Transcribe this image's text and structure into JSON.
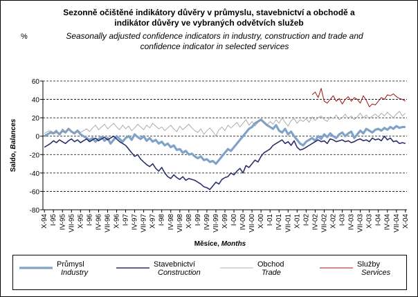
{
  "chart_data": {
    "type": "line",
    "title": [
      "Sezonně očištěné indikátory důvěry v průmyslu, stavebnictví a obchodě a",
      "indikátor důvěry ve vybraných odvětvích služeb"
    ],
    "subtitle": [
      "Seasonally adjusted confidence indicators in industry, construction and trade and",
      "confidence indicator in selected services"
    ],
    "unit": "%",
    "ylabel": [
      "Saldo, ",
      "Balances"
    ],
    "xlabel": [
      "Měsíce, ",
      "Months"
    ],
    "categories": [
      "X-94",
      null,
      null,
      "I-95",
      null,
      null,
      "IV-95",
      null,
      null,
      "VII-95",
      null,
      null,
      "X-95",
      null,
      null,
      "I-96",
      null,
      null,
      "IV-96",
      null,
      null,
      "VII-96",
      null,
      null,
      "X-96",
      null,
      null,
      "I-97",
      null,
      null,
      "IV-97",
      null,
      null,
      "VII-97",
      null,
      null,
      "X-97",
      null,
      null,
      "I-98",
      null,
      null,
      "IV-98",
      null,
      null,
      "VII-98",
      null,
      null,
      "X-98",
      null,
      null,
      "I-99",
      null,
      null,
      "IV-99",
      null,
      null,
      "VII-99",
      null,
      null,
      "X-99",
      null,
      null,
      "I-00",
      null,
      null,
      "IV-00",
      null,
      null,
      "VII-00",
      null,
      null,
      "X-00",
      null,
      null,
      "I-01",
      null,
      null,
      "IV-01",
      null,
      null,
      "VII-01",
      null,
      null,
      "X-01",
      null,
      null,
      "I-02",
      null,
      null,
      "IV-02",
      null,
      null,
      "VII-02",
      null,
      null,
      "X-02",
      null,
      null,
      "I-03",
      null,
      null,
      "IV-03",
      null,
      null,
      "VII-03",
      null,
      null,
      "X-03",
      null,
      null,
      "I-04",
      null,
      null,
      "IV-04",
      null,
      null,
      "VII-04",
      null,
      null,
      "X-04"
    ],
    "series": [
      {
        "name": "Průmysl",
        "name_en": "Industry",
        "color": "#7fa3c8",
        "width": 3.2,
        "values": [
          0,
          2,
          4,
          3,
          5,
          2,
          6,
          4,
          8,
          5,
          3,
          6,
          2,
          0,
          -2,
          -4,
          -2,
          -6,
          -3,
          -1,
          -5,
          -2,
          -8,
          -4,
          0,
          -3,
          -6,
          -2,
          0,
          -4,
          2,
          -1,
          -3,
          0,
          -5,
          -2,
          -6,
          -4,
          -8,
          -6,
          -10,
          -8,
          -12,
          -10,
          -15,
          -14,
          -18,
          -16,
          -20,
          -19,
          -22,
          -24,
          -22,
          -26,
          -25,
          -28,
          -27,
          -30,
          -26,
          -22,
          -18,
          -14,
          -16,
          -12,
          -8,
          -4,
          0,
          4,
          8,
          10,
          14,
          16,
          18,
          15,
          12,
          10,
          8,
          12,
          6,
          4,
          8,
          2,
          5,
          0,
          -4,
          -8,
          -10,
          -6,
          -4,
          -2,
          -5,
          0,
          -3,
          2,
          -1,
          3,
          0,
          -2,
          2,
          4,
          0,
          3,
          5,
          -2,
          2,
          6,
          3,
          8,
          6,
          4,
          7,
          8,
          6,
          9,
          7,
          10,
          8,
          11,
          9,
          10,
          10
        ]
      },
      {
        "name": "Stavebnictví",
        "name_en": "Construction",
        "color": "#2a2f6b",
        "width": 1.6,
        "values": [
          -12,
          -10,
          -8,
          -5,
          -7,
          -4,
          -6,
          -8,
          -5,
          -3,
          -6,
          -4,
          -7,
          -5,
          -3,
          -6,
          -4,
          -2,
          -5,
          -3,
          -1,
          -4,
          -2,
          0,
          -3,
          -6,
          -8,
          -10,
          -14,
          -18,
          -22,
          -20,
          -25,
          -28,
          -31,
          -33,
          -30,
          -35,
          -38,
          -34,
          -40,
          -44,
          -46,
          -42,
          -45,
          -47,
          -44,
          -48,
          -46,
          -47,
          -48,
          -50,
          -52,
          -55,
          -56,
          -58,
          -54,
          -50,
          -52,
          -47,
          -45,
          -44,
          -40,
          -42,
          -38,
          -35,
          -40,
          -32,
          -34,
          -30,
          -26,
          -28,
          -22,
          -18,
          -16,
          -14,
          -10,
          -8,
          -6,
          -4,
          -8,
          -6,
          -10,
          -5,
          -12,
          -15,
          -14,
          -12,
          -10,
          -8,
          -6,
          -4,
          -6,
          -5,
          -8,
          -3,
          -4,
          -6,
          -5,
          -4,
          -6,
          -5,
          -7,
          -6,
          -4,
          -3,
          -5,
          -4,
          -6,
          -2,
          -4,
          -3,
          -5,
          0,
          -4,
          -2,
          -6,
          -5,
          -8,
          -7,
          -8
        ]
      },
      {
        "name": "Obchod",
        "name_en": "Trade",
        "color": "#999999",
        "width": 0.8,
        "values": [
          3,
          5,
          6,
          4,
          7,
          2,
          8,
          5,
          9,
          6,
          3,
          7,
          4,
          6,
          8,
          5,
          9,
          12,
          7,
          10,
          13,
          8,
          11,
          14,
          10,
          7,
          12,
          8,
          11,
          6,
          9,
          13,
          10,
          7,
          12,
          9,
          14,
          11,
          8,
          10,
          6,
          9,
          12,
          8,
          5,
          11,
          7,
          10,
          13,
          9,
          6,
          4,
          8,
          2,
          6,
          9,
          5,
          0,
          7,
          10,
          6,
          12,
          9,
          12,
          15,
          10,
          14,
          18,
          12,
          16,
          11,
          15,
          19,
          14,
          12,
          16,
          13,
          18,
          14,
          20,
          15,
          11,
          17,
          19,
          14,
          18,
          16,
          19,
          15,
          21,
          17,
          20,
          22,
          18,
          16,
          21,
          19,
          23,
          18,
          20,
          24,
          19,
          22,
          18,
          21,
          25,
          20,
          23,
          19,
          22,
          24,
          21,
          25,
          22,
          26,
          23,
          20,
          24,
          27,
          22,
          25
        ]
      },
      {
        "name": "Služby",
        "name_en": "Services",
        "color": "#a01010",
        "width": 1,
        "values": [
          null,
          null,
          null,
          null,
          null,
          null,
          null,
          null,
          null,
          null,
          null,
          null,
          null,
          null,
          null,
          null,
          null,
          null,
          null,
          null,
          null,
          null,
          null,
          null,
          null,
          null,
          null,
          null,
          null,
          null,
          null,
          null,
          null,
          null,
          null,
          null,
          null,
          null,
          null,
          null,
          null,
          null,
          null,
          null,
          null,
          null,
          null,
          null,
          null,
          null,
          null,
          null,
          null,
          null,
          null,
          null,
          null,
          null,
          null,
          null,
          null,
          null,
          null,
          null,
          null,
          null,
          null,
          null,
          null,
          null,
          null,
          null,
          null,
          null,
          null,
          null,
          null,
          null,
          null,
          null,
          null,
          null,
          null,
          null,
          null,
          null,
          null,
          null,
          null,
          45,
          48,
          42,
          52,
          38,
          36,
          40,
          44,
          38,
          41,
          35,
          40,
          43,
          38,
          42,
          40,
          36,
          44,
          39,
          32,
          35,
          34,
          38,
          42,
          40,
          45,
          44,
          46,
          43,
          41,
          40,
          38
        ]
      }
    ],
    "ylim": [
      -80,
      60
    ],
    "yticks": [
      -80,
      -60,
      -40,
      -20,
      0,
      20,
      40,
      60
    ],
    "grid": true
  }
}
